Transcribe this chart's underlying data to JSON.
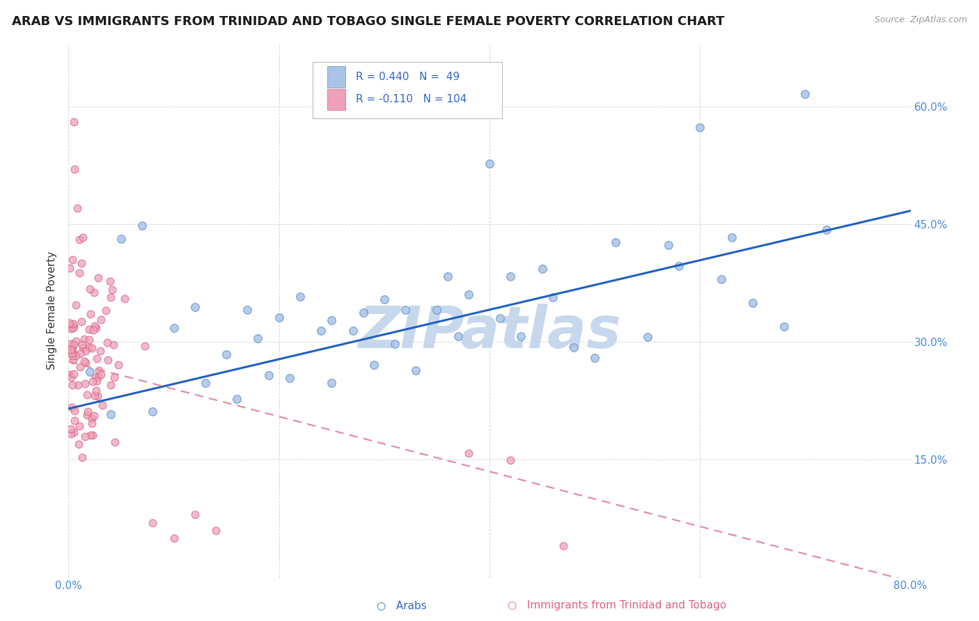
{
  "title": "ARAB VS IMMIGRANTS FROM TRINIDAD AND TOBAGO SINGLE FEMALE POVERTY CORRELATION CHART",
  "source_text": "Source: ZipAtlas.com",
  "ylabel": "Single Female Poverty",
  "watermark": "ZIPatlas",
  "xmin": 0.0,
  "xmax": 0.8,
  "ymin": 0.0,
  "ymax": 0.68,
  "ytick_vals": [
    0.15,
    0.3,
    0.45,
    0.6
  ],
  "ytick_labels": [
    "15.0%",
    "30.0%",
    "45.0%",
    "60.0%"
  ],
  "xtick_vals": [
    0.0,
    0.2,
    0.4,
    0.6,
    0.8
  ],
  "xtick_labels": [
    "0.0%",
    "",
    "",
    "",
    "80.0%"
  ],
  "legend_label1": "Arabs",
  "legend_label2": "Immigrants from Trinidad and Tobago",
  "color_arab": "#aac4e8",
  "color_tt": "#f0a0b8",
  "color_arab_edge": "#6090c8",
  "color_tt_edge": "#d06080",
  "trend_arab_color": "#2060c0",
  "trend_tt_color": "#e08898",
  "background_color": "#ffffff",
  "grid_color": "#cccccc",
  "title_fontsize": 13,
  "axis_fontsize": 11,
  "tick_fontsize": 11,
  "tick_color": "#4488dd",
  "watermark_color": "#c8d8ec",
  "watermark_fontsize": 60
}
